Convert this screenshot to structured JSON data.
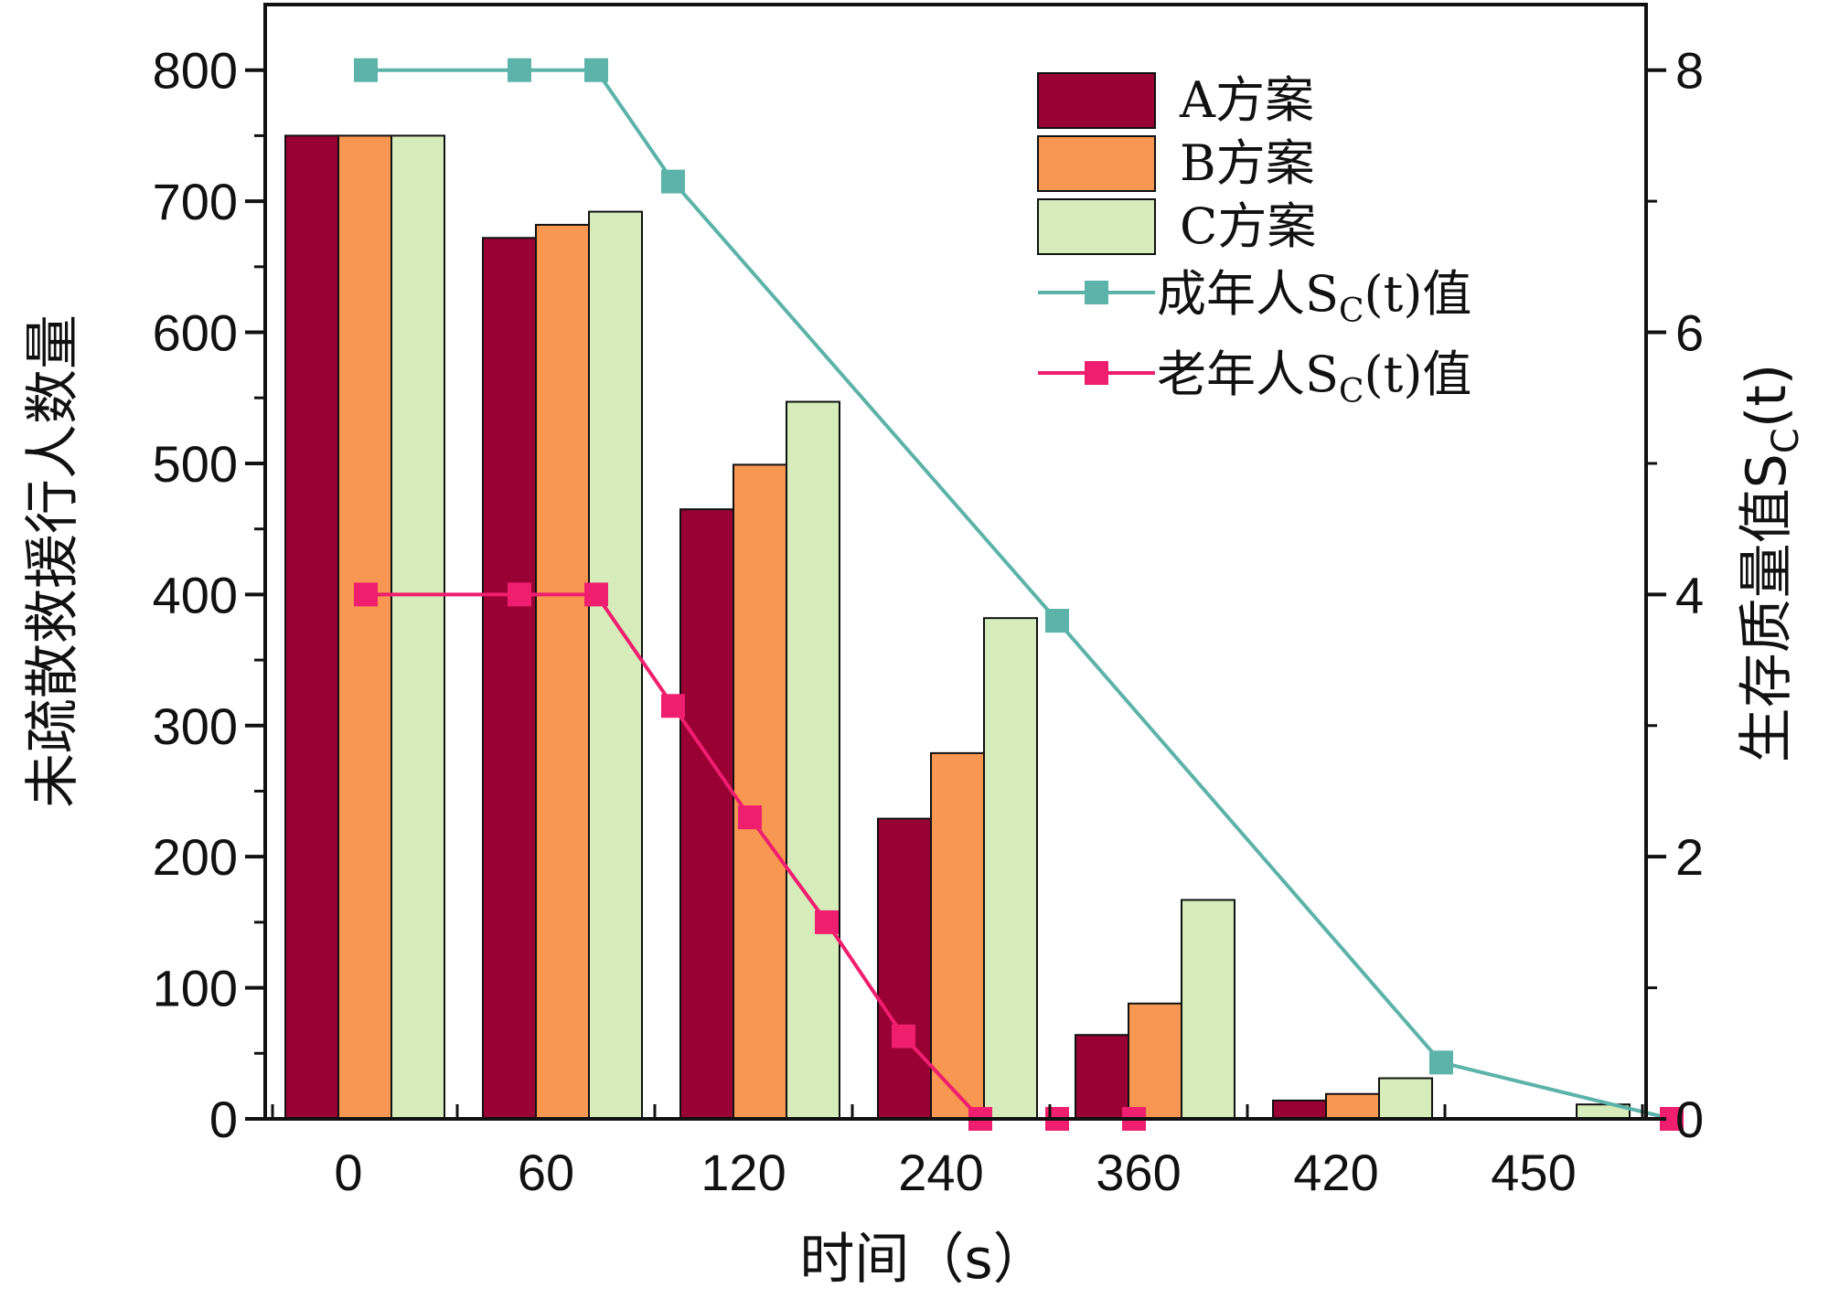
{
  "chart_data": {
    "type": "bar",
    "categories": [
      "0",
      "60",
      "120",
      "240",
      "360",
      "420",
      "450"
    ],
    "xlabel": "时间（s）",
    "ylabel": "未疏散救援行人数量",
    "ylabel_right": "生存质量值",
    "ylabel_right_sub": "S",
    "ylabel_right_subscript": "C",
    "ylabel_right_suffix": "(t)",
    "ylim": [
      0,
      850
    ],
    "yticks": [
      0,
      100,
      200,
      300,
      400,
      500,
      600,
      700,
      800
    ],
    "ylim_right": [
      0,
      8.5
    ],
    "yticks_right": [
      0,
      2,
      4,
      6,
      8
    ],
    "series": [
      {
        "name": "A方案",
        "color": "#990033",
        "values": [
          750,
          672,
          465,
          229,
          64,
          14,
          0
        ]
      },
      {
        "name": "B方案",
        "color": "#f79752",
        "values": [
          750,
          682,
          499,
          279,
          88,
          19,
          0
        ]
      },
      {
        "name": "C方案",
        "color": "#d6edbb",
        "values": [
          750,
          692,
          547,
          382,
          167,
          31,
          11
        ]
      }
    ],
    "lines": [
      {
        "name": "成年人",
        "name_sub": "S",
        "name_subscript": "C",
        "name_suffix": "(t)值",
        "color": "#5bb3aa",
        "x": [
          0,
          2,
          3,
          4,
          5,
          6,
          7,
          8,
          9,
          10,
          11,
          12,
          13,
          14,
          15,
          16,
          17,
          18,
          19,
          20
        ],
        "y": [
          8,
          8,
          8,
          7.15,
          null,
          null,
          null,
          null,
          3.8,
          null,
          null,
          null,
          null,
          0.43,
          null,
          null,
          0,
          null,
          null,
          null
        ]
      },
      {
        "name": "老年人",
        "name_sub": "S",
        "name_subscript": "C",
        "name_suffix": "(t)值",
        "color": "#f01e6e",
        "x": [
          0,
          2,
          3,
          4,
          5,
          6,
          7,
          8,
          9,
          10,
          11,
          12,
          13,
          14,
          15,
          16,
          17,
          18,
          19,
          20
        ],
        "y": [
          4,
          4,
          4,
          3.15,
          2.3,
          1.5,
          0.63,
          0,
          0,
          0,
          null,
          null,
          null,
          null,
          null,
          null,
          0,
          null,
          null,
          null
        ]
      }
    ],
    "legend_position": "top-right",
    "grid": false
  }
}
